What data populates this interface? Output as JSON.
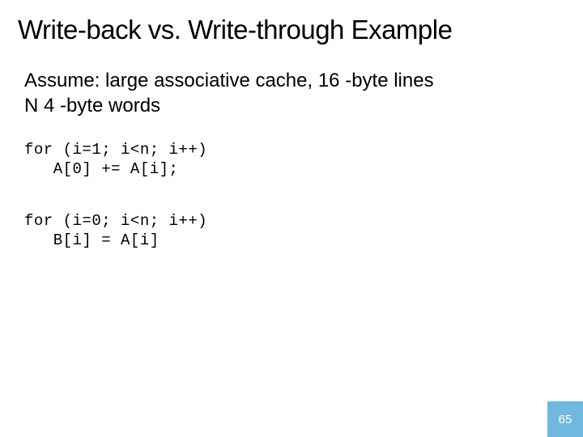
{
  "slide": {
    "title": "Write-back vs. Write-through Example",
    "subtitle_line1": "Assume: large associative cache, 16 -byte lines",
    "subtitle_line2": "N 4 -byte words",
    "code_block_1": "for (i=1; i<n; i++)\n   A[0] += A[i];",
    "code_block_2": "for (i=0; i<n; i++)\n   B[i] = A[i]",
    "page_number": "65"
  },
  "style": {
    "background_color": "#ffffff",
    "text_color": "#000000",
    "title_fontsize": 33,
    "subtitle_fontsize": 24,
    "code_fontsize": 19,
    "code_font": "Courier New",
    "body_font": "Arial",
    "page_badge_bg": "#70b8e0",
    "page_badge_fg": "#ffffff",
    "page_badge_size": 44,
    "page_badge_fontsize": 15,
    "slide_width": 720,
    "slide_height": 540
  }
}
